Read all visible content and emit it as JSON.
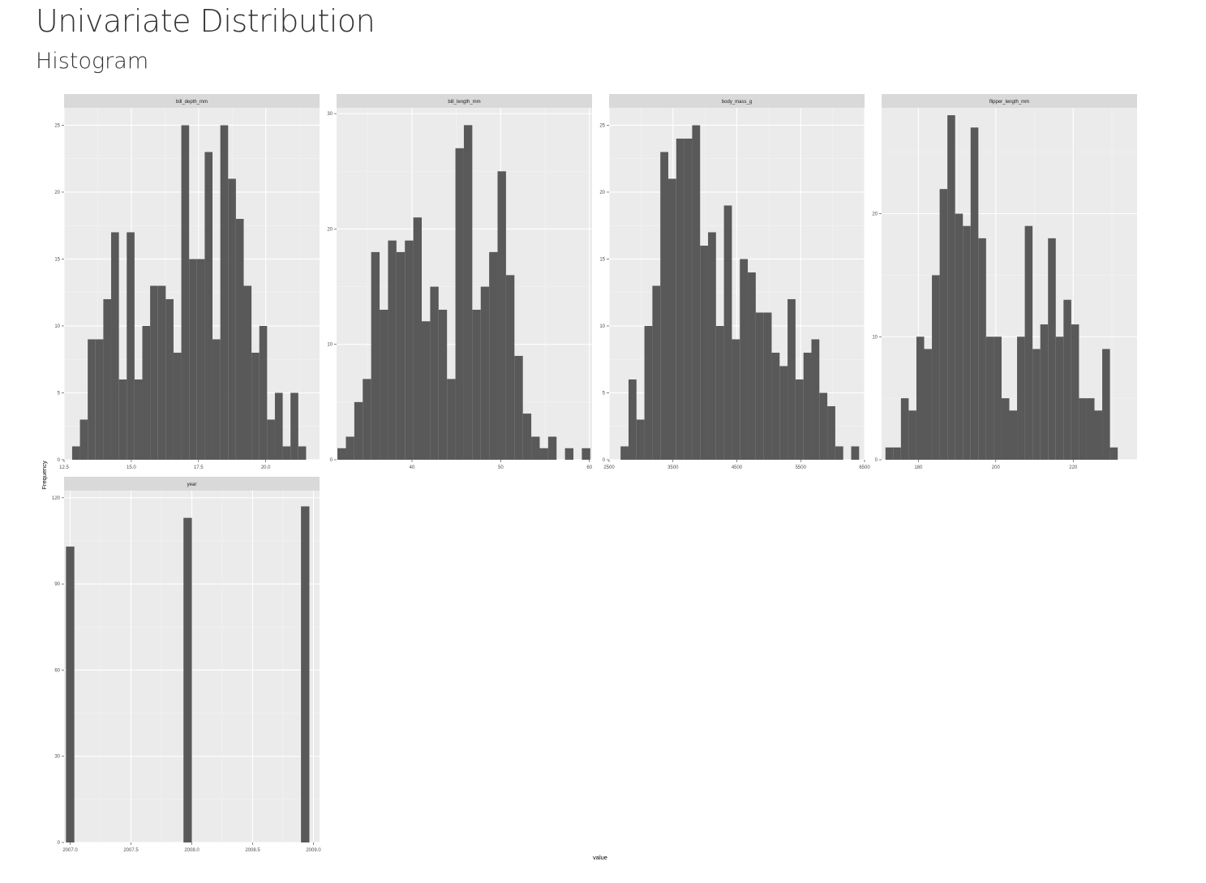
{
  "page": {
    "title": "Univariate Distribution",
    "subtitle": "Histogram"
  },
  "colors": {
    "panel_bg": "#EBEBEB",
    "strip_bg": "#D9D9D9",
    "bar_fill": "#595959",
    "grid_major": "#FFFFFF",
    "text": "#4D4D4D"
  },
  "chart_data": {
    "type": "bar",
    "layout": "facet_wrap",
    "xlabel": "value",
    "ylabel": "Frequency",
    "grid": true,
    "facets": [
      {
        "name": "bill_depth_mm",
        "xlim": [
          12.5,
          22.0
        ],
        "ylim": [
          0,
          26.3
        ],
        "xticks": [
          12.5,
          15.0,
          17.5,
          20.0
        ],
        "xtick_labels": [
          "12.5",
          "15.0",
          "17.5",
          "20.0"
        ],
        "yticks": [
          0,
          5,
          10,
          15,
          20,
          25
        ],
        "bin_start": 12.8,
        "bin_width": 0.29,
        "values": [
          1,
          3,
          9,
          9,
          12,
          17,
          6,
          17,
          6,
          10,
          13,
          13,
          12,
          8,
          25,
          15,
          15,
          23,
          9,
          25,
          21,
          18,
          13,
          8,
          10,
          3,
          5,
          1,
          5,
          1
        ]
      },
      {
        "name": "bill_length_mm",
        "xlim": [
          31.5,
          60.3
        ],
        "ylim": [
          0,
          30.5
        ],
        "xticks": [
          40,
          50,
          60
        ],
        "xtick_labels": [
          "40",
          "50",
          "60"
        ],
        "yticks": [
          0,
          10,
          20,
          30
        ],
        "bin_start": 31.6,
        "bin_width": 0.95,
        "values": [
          1,
          2,
          5,
          7,
          18,
          13,
          19,
          18,
          19,
          21,
          12,
          15,
          13,
          7,
          27,
          29,
          13,
          15,
          18,
          25,
          16,
          9,
          4,
          2,
          1,
          2,
          0,
          1,
          0,
          1
        ]
      },
      {
        "name": "body_mass_g",
        "xlim": [
          2500,
          6500
        ],
        "ylim": [
          0,
          26.3
        ],
        "xticks": [
          2500,
          3500,
          4500,
          5500,
          6500
        ],
        "xtick_labels": [
          "2500",
          "3500",
          "4500",
          "5500",
          "6500"
        ],
        "yticks": [
          0,
          5,
          10,
          15,
          20,
          25
        ],
        "bin_start": 2680,
        "bin_width": 124.5,
        "values": [
          1,
          6,
          3,
          10,
          13,
          23,
          21,
          24,
          24,
          25,
          16,
          17,
          10,
          19,
          9,
          15,
          14,
          11,
          11,
          8,
          7,
          12,
          6,
          8,
          9,
          5,
          4,
          1,
          0,
          1
        ]
      },
      {
        "name": "flipper_length_mm",
        "xlim": [
          170.5,
          236.5
        ],
        "ylim": [
          0,
          28.6
        ],
        "xticks": [
          180,
          200,
          220
        ],
        "xtick_labels": [
          "180",
          "200",
          "220"
        ],
        "yticks": [
          0,
          10,
          20
        ],
        "bin_start": 171.5,
        "bin_width": 2.0,
        "values": [
          1,
          1,
          5,
          4,
          10,
          9,
          15,
          22,
          28,
          20,
          19,
          27,
          18,
          10,
          10,
          5,
          4,
          10,
          19,
          9,
          11,
          18,
          10,
          13,
          11,
          5,
          5,
          4,
          9,
          1
        ]
      },
      {
        "name": "year",
        "xlim": [
          2006.95,
          2009.05
        ],
        "ylim": [
          0,
          122.5
        ],
        "xticks": [
          2007.0,
          2007.5,
          2008.0,
          2008.5,
          2009.0
        ],
        "xtick_labels": [
          "2007.0",
          "2007.5",
          "2008.0",
          "2008.5",
          "2009.0"
        ],
        "yticks": [
          0,
          30,
          60,
          90,
          120
        ],
        "bin_start": 2006.9655,
        "bin_width": 0.069,
        "values": [
          103,
          0,
          0,
          0,
          0,
          0,
          0,
          0,
          0,
          0,
          0,
          0,
          0,
          0,
          113,
          0,
          0,
          0,
          0,
          0,
          0,
          0,
          0,
          0,
          0,
          0,
          0,
          0,
          117
        ]
      }
    ]
  }
}
